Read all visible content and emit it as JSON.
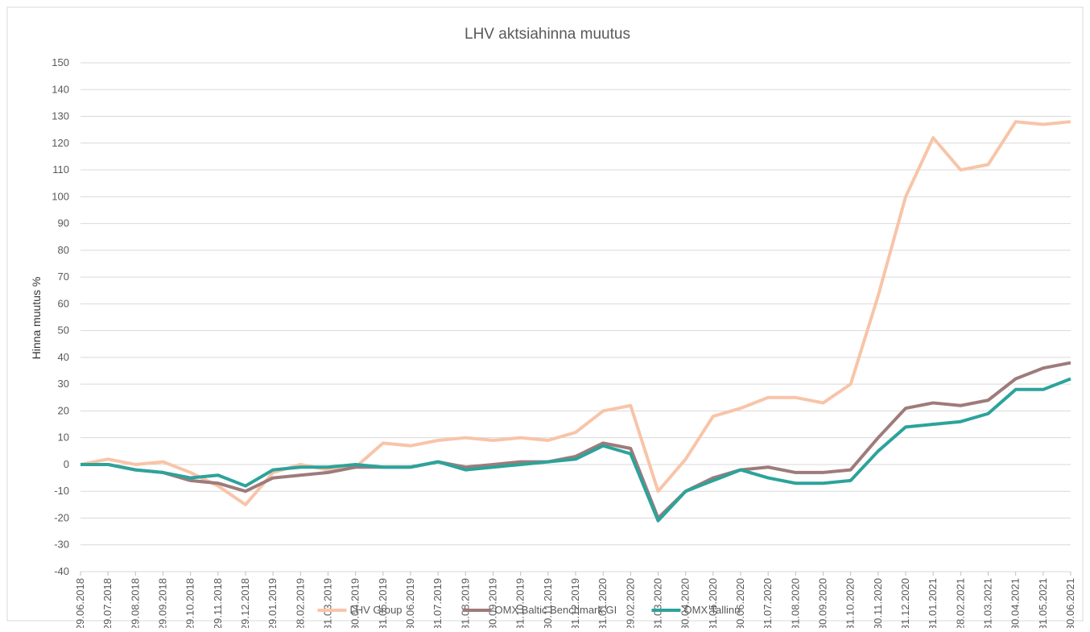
{
  "chart_data": {
    "type": "line",
    "title": "LHV aktsiahinna muutus",
    "y_label": "Hinna muutus %",
    "categories": [
      "29.06.2018",
      "29.07.2018",
      "29.08.2018",
      "29.09.2018",
      "29.10.2018",
      "29.11.2018",
      "29.12.2018",
      "29.01.2019",
      "28.02.2019",
      "31.03.2019",
      "30.04.2019",
      "31.05.2019",
      "30.06.2019",
      "31.07.2019",
      "31.08.2019",
      "30.09.2019",
      "31.10.2019",
      "30.11.2019",
      "31.12.2019",
      "31.01.2020",
      "29.02.2020",
      "31.03.2020",
      "30.04.2020",
      "31.05.2020",
      "30.06.2020",
      "31.07.2020",
      "31.08.2020",
      "30.09.2020",
      "31.10.2020",
      "30.11.2020",
      "31.12.2020",
      "31.01.2021",
      "28.02.2021",
      "31.03.2021",
      "30.04.2021",
      "31.05.2021",
      "30.06.2021"
    ],
    "series": [
      {
        "name": "LHV Group",
        "color": "#f8c4a8",
        "values": [
          0,
          2,
          0,
          1,
          -3,
          -8,
          -15,
          -3,
          0,
          -2,
          -1,
          8,
          7,
          9,
          10,
          9,
          10,
          9,
          12,
          20,
          22,
          -10,
          2,
          18,
          21,
          25,
          25,
          23,
          30,
          63,
          100,
          122,
          110,
          112,
          128,
          127,
          128
        ]
      },
      {
        "name": "OMX Baltic Benchmark GI",
        "color": "#9e7b7b",
        "values": [
          0,
          0,
          -2,
          -3,
          -6,
          -7,
          -10,
          -5,
          -4,
          -3,
          -1,
          -1,
          -1,
          1,
          -1,
          0,
          1,
          1,
          3,
          8,
          6,
          -20,
          -10,
          -5,
          -2,
          -1,
          -3,
          -3,
          -2,
          10,
          21,
          23,
          22,
          24,
          32,
          36,
          38
        ]
      },
      {
        "name": "OMX Tallinn",
        "color": "#2ca39b",
        "values": [
          0,
          0,
          -2,
          -3,
          -5,
          -4,
          -8,
          -2,
          -1,
          -1,
          0,
          -1,
          -1,
          1,
          -2,
          -1,
          0,
          1,
          2,
          7,
          4,
          -21,
          -10,
          -6,
          -2,
          -5,
          -7,
          -7,
          -6,
          5,
          14,
          15,
          16,
          19,
          28,
          28,
          32
        ]
      }
    ],
    "ylim": [
      -40,
      150
    ],
    "yticks": [
      -40,
      -30,
      -20,
      -10,
      0,
      10,
      20,
      30,
      40,
      50,
      60,
      70,
      80,
      90,
      100,
      110,
      120,
      130,
      140,
      150
    ],
    "grid": true,
    "legend": "bottom"
  }
}
